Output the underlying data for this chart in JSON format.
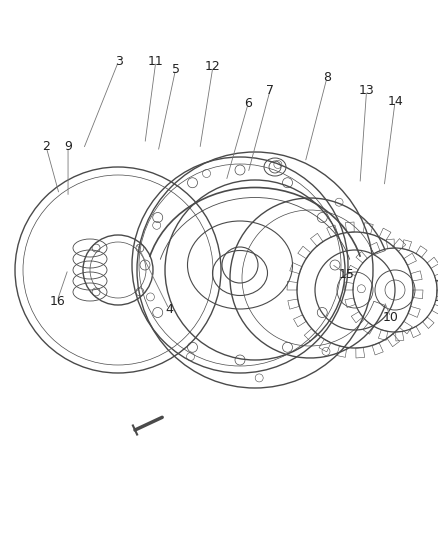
{
  "bg_color": "#ffffff",
  "line_color": "#4a4a4a",
  "label_color": "#222222",
  "figsize": [
    4.39,
    5.33
  ],
  "dpi": 100,
  "label_fontsize": 9,
  "leaders": {
    "2": [
      0.105,
      0.275,
      0.135,
      0.365
    ],
    "3": [
      0.27,
      0.115,
      0.19,
      0.28
    ],
    "4": [
      0.385,
      0.58,
      0.31,
      0.455
    ],
    "5": [
      0.4,
      0.13,
      0.36,
      0.285
    ],
    "6": [
      0.565,
      0.195,
      0.515,
      0.34
    ],
    "7": [
      0.615,
      0.17,
      0.565,
      0.325
    ],
    "8": [
      0.745,
      0.145,
      0.695,
      0.305
    ],
    "9": [
      0.155,
      0.275,
      0.155,
      0.37
    ],
    "10": [
      0.89,
      0.595,
      0.875,
      0.565
    ],
    "11": [
      0.355,
      0.115,
      0.33,
      0.27
    ],
    "12": [
      0.485,
      0.125,
      0.455,
      0.28
    ],
    "13": [
      0.835,
      0.17,
      0.82,
      0.345
    ],
    "14": [
      0.9,
      0.19,
      0.875,
      0.35
    ],
    "15": [
      0.79,
      0.515,
      0.755,
      0.495
    ],
    "16": [
      0.13,
      0.565,
      0.155,
      0.505
    ]
  }
}
